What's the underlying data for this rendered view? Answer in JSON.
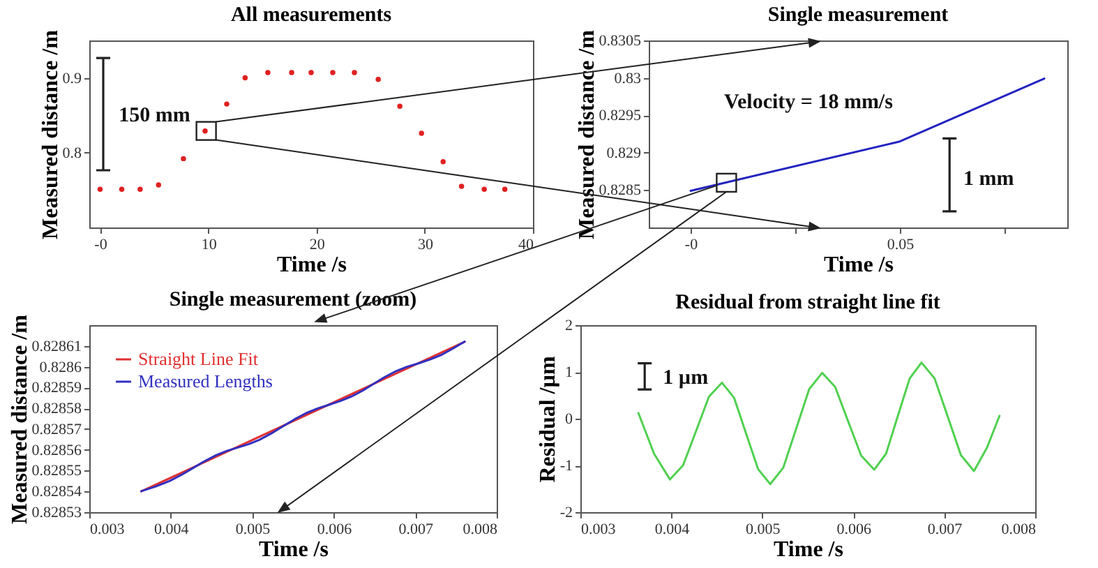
{
  "chart_data": [
    {
      "type": "scatter",
      "title": "All measurements",
      "xlabel": "Time /s",
      "ylabel": "Measured distance /m",
      "marker": "circle",
      "annotations": [
        "150 mm"
      ],
      "xlim": [
        -1,
        40
      ],
      "xticks": [
        {
          "value": 0,
          "label": "-0"
        },
        10,
        20,
        30,
        40
      ],
      "ylim": [
        0.7,
        0.95
      ],
      "yticks": [
        0.8,
        0.9
      ],
      "series": [
        {
          "color": "#e02020",
          "x": [
            0,
            2,
            3.7,
            5.4,
            7.7,
            9.7,
            11.7,
            13.4,
            15.5,
            17.7,
            19.5,
            21.5,
            23.5,
            25.7,
            27.7,
            29.7,
            31.7,
            33.4,
            35.5,
            37.4
          ],
          "values": [
            0.751,
            0.751,
            0.751,
            0.757,
            0.792,
            0.829,
            0.865,
            0.9,
            0.907,
            0.907,
            0.907,
            0.907,
            0.907,
            0.898,
            0.862,
            0.826,
            0.788,
            0.755,
            0.751,
            0.751
          ]
        }
      ]
    },
    {
      "type": "line",
      "title": "Single measurement",
      "xlabel": "Time /s",
      "ylabel": "Measured distance /m",
      "annotations": [
        "Velocity = 18 mm/s",
        "1 mm"
      ],
      "xlim": [
        -0.01,
        0.09
      ],
      "xticks": [
        {
          "value": 0,
          "label": "-0"
        },
        {
          "value": 0.025,
          "label": null
        },
        0.05,
        {
          "value": 0.075,
          "label": null
        }
      ],
      "ylim": [
        0.828,
        0.8305
      ],
      "yticks": [
        0.8285,
        0.829,
        0.8295,
        0.83,
        0.8305
      ],
      "series": [
        {
          "color": "#2424c0",
          "x": [
            0,
            0.05,
            0.0845
          ],
          "values": [
            0.82849,
            0.82915,
            0.82999
          ]
        }
      ]
    },
    {
      "type": "line",
      "title": "Single measurement (zoom)",
      "xlabel": "Time /s",
      "ylabel": "Measured distance /m",
      "legend": "top left",
      "xlim": [
        0.003,
        0.008
      ],
      "xticks": [
        0.003,
        0.004,
        0.005,
        0.006,
        0.007,
        0.008
      ],
      "ylim": [
        0.82853,
        0.82862
      ],
      "yticks": [
        0.82853,
        0.82854,
        0.82855,
        0.82856,
        0.82857,
        0.82858,
        0.82859,
        0.8286,
        0.82861
      ],
      "series": [
        {
          "name": "Straight Line Fit",
          "color": "#e03030",
          "x": [
            0.003638,
            0.007607
          ],
          "values": [
            0.82854,
            0.828612
          ]
        },
        {
          "name": "Measured Lengths",
          "color": "#3030c0",
          "x": [
            0.003638,
            0.00381,
            0.003985,
            0.004128,
            0.004271,
            0.004413,
            0.004556,
            0.004689,
            0.004822,
            0.004954,
            0.005087,
            0.00523,
            0.005373,
            0.005515,
            0.005658,
            0.005801,
            0.005944,
            0.006087,
            0.00623,
            0.00636,
            0.00649,
            0.00662,
            0.00675,
            0.006894,
            0.007039,
            0.007183,
            0.007327,
            0.00747,
            0.007607
          ],
          "values": [
            0.8285401,
            0.8285423,
            0.828545,
            0.8285479,
            0.8285512,
            0.8285545,
            0.8285574,
            0.8285595,
            0.8285611,
            0.8285627,
            0.8285648,
            0.8285678,
            0.8285712,
            0.8285746,
            0.8285776,
            0.8285799,
            0.8285817,
            0.8285836,
            0.8285859,
            0.8285886,
            0.8285918,
            0.8285949,
            0.8285976,
            0.8285999,
            0.8286016,
            0.8286035,
            0.8286058,
            0.8286089,
            0.8286121
          ]
        }
      ]
    },
    {
      "type": "line",
      "title": "Residual from straight line fit",
      "xlabel": "Time /s",
      "ylabel": "Residual /µm",
      "annotations": [
        "1 µm"
      ],
      "xlim": [
        0.003,
        0.008
      ],
      "xticks": [
        0.003,
        0.004,
        0.005,
        0.006,
        0.007,
        0.008
      ],
      "ylim": [
        -2,
        2
      ],
      "yticks": [
        -2,
        -1,
        0,
        1,
        2
      ],
      "series": [
        {
          "color": "#50d050",
          "x": [
            0.003638,
            0.00381,
            0.003985,
            0.004128,
            0.004271,
            0.004413,
            0.004556,
            0.004689,
            0.004822,
            0.004954,
            0.005087,
            0.00523,
            0.005373,
            0.005515,
            0.005658,
            0.005801,
            0.005944,
            0.006087,
            0.00623,
            0.00636,
            0.00649,
            0.00662,
            0.00675,
            0.006894,
            0.007039,
            0.007183,
            0.007327,
            0.00747,
            0.007607
          ],
          "values": [
            0.12,
            -0.75,
            -1.3,
            -1,
            -0.27,
            0.47,
            0.77,
            0.45,
            -0.32,
            -1.08,
            -1.4,
            -1.05,
            -0.21,
            0.63,
            0.98,
            0.68,
            -0.06,
            -0.79,
            -1.09,
            -0.75,
            0.06,
            0.86,
            1.2,
            0.86,
            0.04,
            -0.78,
            -1.12,
            -0.62,
            0.06
          ]
        }
      ]
    }
  ]
}
